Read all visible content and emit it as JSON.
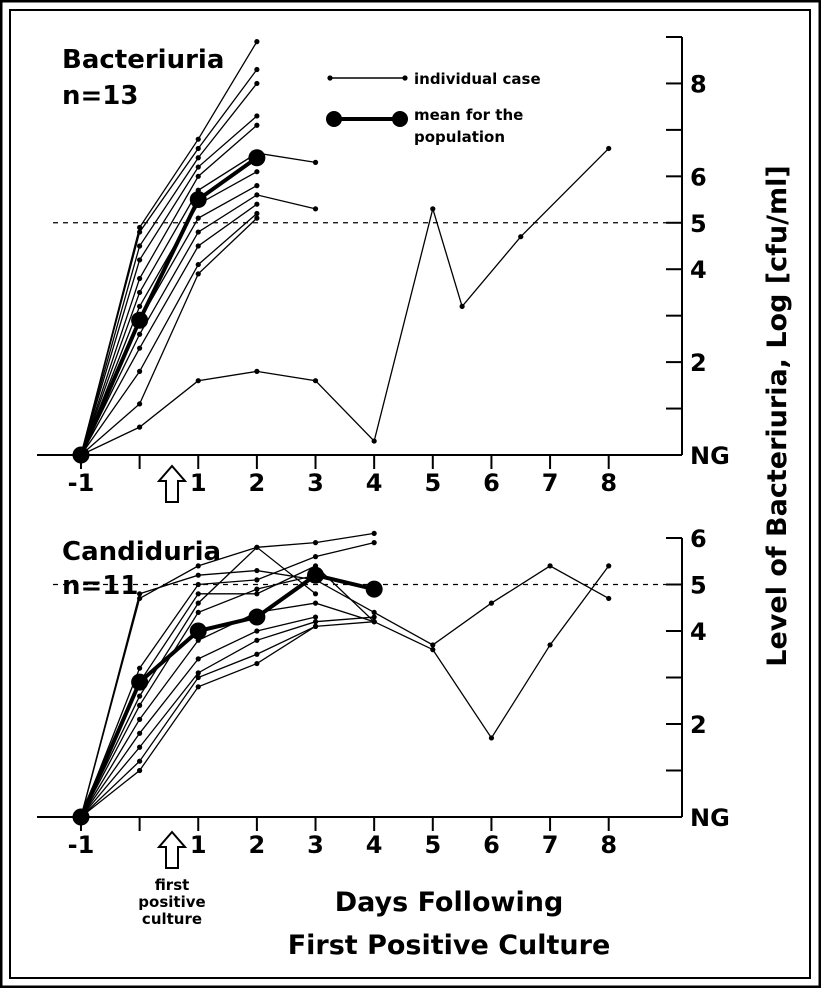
{
  "chart_data": {
    "type": "line",
    "ylabel": "Level of Bacteriuria, Log [cfu/ml]",
    "xlabel": [
      "Days Following",
      "First Positive Culture"
    ],
    "arrow_annotation": [
      "first",
      "positive",
      "culture"
    ],
    "legend": {
      "individual": "individual case",
      "mean": [
        "mean for the",
        "population"
      ]
    },
    "x_ticks": [
      {
        "x": -1,
        "label": "-1"
      },
      {
        "x": 1,
        "label": "1"
      },
      {
        "x": 2,
        "label": "2"
      },
      {
        "x": 3,
        "label": "3"
      },
      {
        "x": 4,
        "label": "4"
      },
      {
        "x": 5,
        "label": "5"
      },
      {
        "x": 6,
        "label": "6"
      },
      {
        "x": 7,
        "label": "7"
      },
      {
        "x": 8,
        "label": "8"
      }
    ],
    "panels": [
      {
        "title": [
          "Bacteriuria",
          "n=13"
        ],
        "xlim": [
          -1.75,
          9.25
        ],
        "ylim": [
          0,
          9
        ],
        "y_ticks": [
          {
            "y": 0,
            "label": "NG"
          },
          {
            "y": 1,
            "label": ""
          },
          {
            "y": 2,
            "label": "2"
          },
          {
            "y": 3,
            "label": ""
          },
          {
            "y": 4,
            "label": "4"
          },
          {
            "y": 5,
            "label": "5"
          },
          {
            "y": 6,
            "label": "6"
          },
          {
            "y": 7,
            "label": ""
          },
          {
            "y": 8,
            "label": "8"
          },
          {
            "y": 9,
            "label": ""
          }
        ],
        "threshold": 5,
        "individual": [
          [
            [
              -1,
              0
            ],
            [
              0,
              0.6
            ],
            [
              1,
              1.6
            ],
            [
              2,
              1.8
            ],
            [
              3,
              1.6
            ],
            [
              4,
              0.3
            ],
            [
              5,
              5.3
            ],
            [
              5.5,
              3.2
            ],
            [
              6.5,
              4.7
            ],
            [
              8,
              6.6
            ]
          ],
          [
            [
              -1,
              0
            ],
            [
              0,
              4.9
            ],
            [
              1,
              6.8
            ],
            [
              2,
              8.9
            ]
          ],
          [
            [
              -1,
              0
            ],
            [
              0,
              4.8
            ],
            [
              1,
              6.6
            ],
            [
              2,
              8.3
            ]
          ],
          [
            [
              -1,
              0
            ],
            [
              0,
              4.5
            ],
            [
              1,
              6.4
            ],
            [
              2,
              8.0
            ]
          ],
          [
            [
              -1,
              0
            ],
            [
              0,
              4.2
            ],
            [
              1,
              6.2
            ],
            [
              2,
              7.3
            ]
          ],
          [
            [
              -1,
              0
            ],
            [
              0,
              3.8
            ],
            [
              1,
              6.0
            ],
            [
              2,
              7.1
            ]
          ],
          [
            [
              -1,
              0
            ],
            [
              0,
              3.5
            ],
            [
              1,
              5.7
            ],
            [
              2,
              6.5
            ],
            [
              3,
              6.3
            ]
          ],
          [
            [
              -1,
              0
            ],
            [
              0,
              3.2
            ],
            [
              1,
              5.4
            ],
            [
              2,
              6.1
            ]
          ],
          [
            [
              -1,
              0
            ],
            [
              0,
              2.9
            ],
            [
              1,
              5.1
            ],
            [
              2,
              5.8
            ]
          ],
          [
            [
              -1,
              0
            ],
            [
              0,
              2.6
            ],
            [
              1,
              4.8
            ],
            [
              2,
              5.6
            ],
            [
              3,
              5.3
            ]
          ],
          [
            [
              -1,
              0
            ],
            [
              0,
              2.3
            ],
            [
              1,
              4.5
            ],
            [
              2,
              5.4
            ]
          ],
          [
            [
              -1,
              0
            ],
            [
              0,
              1.8
            ],
            [
              1,
              4.1
            ],
            [
              2,
              5.2
            ]
          ],
          [
            [
              -1,
              0
            ],
            [
              0,
              1.1
            ],
            [
              1,
              3.9
            ],
            [
              2,
              5.1
            ]
          ]
        ],
        "mean": [
          [
            -1,
            0
          ],
          [
            0,
            2.9
          ],
          [
            1,
            5.5
          ],
          [
            2,
            6.4
          ]
        ]
      },
      {
        "title": [
          "Candiduria",
          "n=11"
        ],
        "xlim": [
          -1.75,
          9.25
        ],
        "ylim": [
          0,
          6
        ],
        "y_ticks": [
          {
            "y": 0,
            "label": "NG"
          },
          {
            "y": 1,
            "label": ""
          },
          {
            "y": 2,
            "label": "2"
          },
          {
            "y": 3,
            "label": ""
          },
          {
            "y": 4,
            "label": "4"
          },
          {
            "y": 5,
            "label": "5"
          },
          {
            "y": 6,
            "label": "6"
          }
        ],
        "threshold": 5,
        "individual": [
          [
            [
              -1,
              0
            ],
            [
              0,
              4.8
            ],
            [
              1,
              5.2
            ],
            [
              2,
              5.3
            ],
            [
              3,
              5.1
            ],
            [
              4,
              4.4
            ],
            [
              5,
              3.7
            ],
            [
              6,
              4.6
            ],
            [
              7,
              5.4
            ],
            [
              8,
              4.7
            ]
          ],
          [
            [
              -1,
              0
            ],
            [
              0,
              4.7
            ],
            [
              1,
              5.4
            ],
            [
              2,
              5.8
            ],
            [
              3,
              5.9
            ],
            [
              4,
              6.1
            ]
          ],
          [
            [
              -1,
              0
            ],
            [
              0,
              3.2
            ],
            [
              1,
              5.0
            ],
            [
              2,
              5.1
            ],
            [
              3,
              5.6
            ],
            [
              4,
              5.9
            ]
          ],
          [
            [
              -1,
              0
            ],
            [
              0,
              2.9
            ],
            [
              1,
              4.8
            ],
            [
              2,
              4.8
            ],
            [
              3,
              5.4
            ],
            [
              4,
              4.2
            ],
            [
              5,
              3.6
            ],
            [
              6,
              1.7
            ],
            [
              7,
              3.7
            ],
            [
              8,
              5.4
            ]
          ],
          [
            [
              -1,
              0
            ],
            [
              0,
              2.6
            ],
            [
              1,
              4.6
            ],
            [
              2,
              5.8
            ],
            [
              3,
              4.8
            ]
          ],
          [
            [
              -1,
              0
            ],
            [
              0,
              2.4
            ],
            [
              1,
              4.4
            ],
            [
              2,
              4.9
            ],
            [
              3,
              5.2
            ]
          ],
          [
            [
              -1,
              0
            ],
            [
              0,
              2.1
            ],
            [
              1,
              3.8
            ],
            [
              2,
              4.4
            ],
            [
              3,
              4.6
            ],
            [
              4,
              4.2
            ]
          ],
          [
            [
              -1,
              0
            ],
            [
              0,
              1.8
            ],
            [
              1,
              3.4
            ],
            [
              2,
              4.0
            ],
            [
              3,
              4.3
            ]
          ],
          [
            [
              -1,
              0
            ],
            [
              0,
              1.5
            ],
            [
              1,
              3.1
            ],
            [
              2,
              3.8
            ],
            [
              3,
              4.2
            ],
            [
              4,
              4.3
            ]
          ],
          [
            [
              -1,
              0
            ],
            [
              0,
              1.2
            ],
            [
              1,
              3.0
            ],
            [
              2,
              3.5
            ],
            [
              3,
              4.1
            ]
          ],
          [
            [
              -1,
              0
            ],
            [
              0,
              1.0
            ],
            [
              1,
              2.8
            ],
            [
              2,
              3.3
            ],
            [
              3,
              4.1
            ],
            [
              4,
              4.2
            ]
          ]
        ],
        "mean": [
          [
            -1,
            0
          ],
          [
            0,
            2.9
          ],
          [
            1,
            4.0
          ],
          [
            2,
            4.3
          ],
          [
            3,
            5.2
          ],
          [
            4,
            4.9
          ]
        ]
      }
    ]
  }
}
